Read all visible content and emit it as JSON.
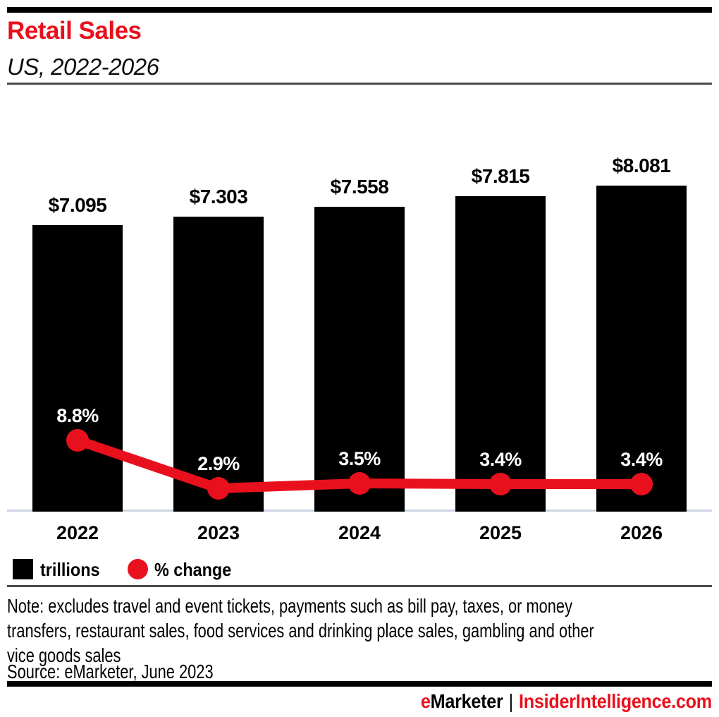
{
  "header": {
    "title": "Retail Sales",
    "subtitle": "US, 2022-2026"
  },
  "chart_data": {
    "type": "bar+line",
    "categories": [
      "2022",
      "2023",
      "2024",
      "2025",
      "2026"
    ],
    "series": [
      {
        "name": "trillions",
        "type": "bar",
        "color": "#000000",
        "values": [
          7.095,
          7.303,
          7.558,
          7.815,
          8.081
        ],
        "labels": [
          "$7.095",
          "$7.303",
          "$7.558",
          "$7.815",
          "$8.081"
        ],
        "unit": "USD trillions"
      },
      {
        "name": "% change",
        "type": "line",
        "color": "#e9101d",
        "values": [
          8.8,
          2.9,
          3.5,
          3.4,
          3.4
        ],
        "labels": [
          "8.8%",
          "2.9%",
          "3.5%",
          "3.4%",
          "3.4%"
        ],
        "unit": "percent"
      }
    ],
    "title": "Retail Sales",
    "subtitle": "US, 2022-2026",
    "xlabel": "",
    "ylabel": "",
    "value_axis": "hidden",
    "gridlines": false,
    "legend_position": "bottom-left"
  },
  "legend": [
    {
      "label": "trillions",
      "swatch": "black-square"
    },
    {
      "label": "% change",
      "swatch": "red-circle"
    }
  ],
  "note": {
    "lines": [
      "Note: excludes travel and event tickets, payments such as bill pay, taxes, or money",
      "transfers, restaurant sales, food services and drinking place sales, gambling and other",
      "vice goods sales"
    ]
  },
  "source": "Source: eMarketer, June 2023",
  "footer": {
    "brand_e": "e",
    "brand_marketer": "Marketer",
    "separator": "|",
    "site": "InsiderIntelligence.com"
  },
  "colors": {
    "accent_red": "#e9101d",
    "bar_black": "#000000",
    "baseline_gray_blue": "#ccd3e2",
    "divider_gray": "#4a4a4a",
    "pct_label_white": "#ffffff"
  }
}
